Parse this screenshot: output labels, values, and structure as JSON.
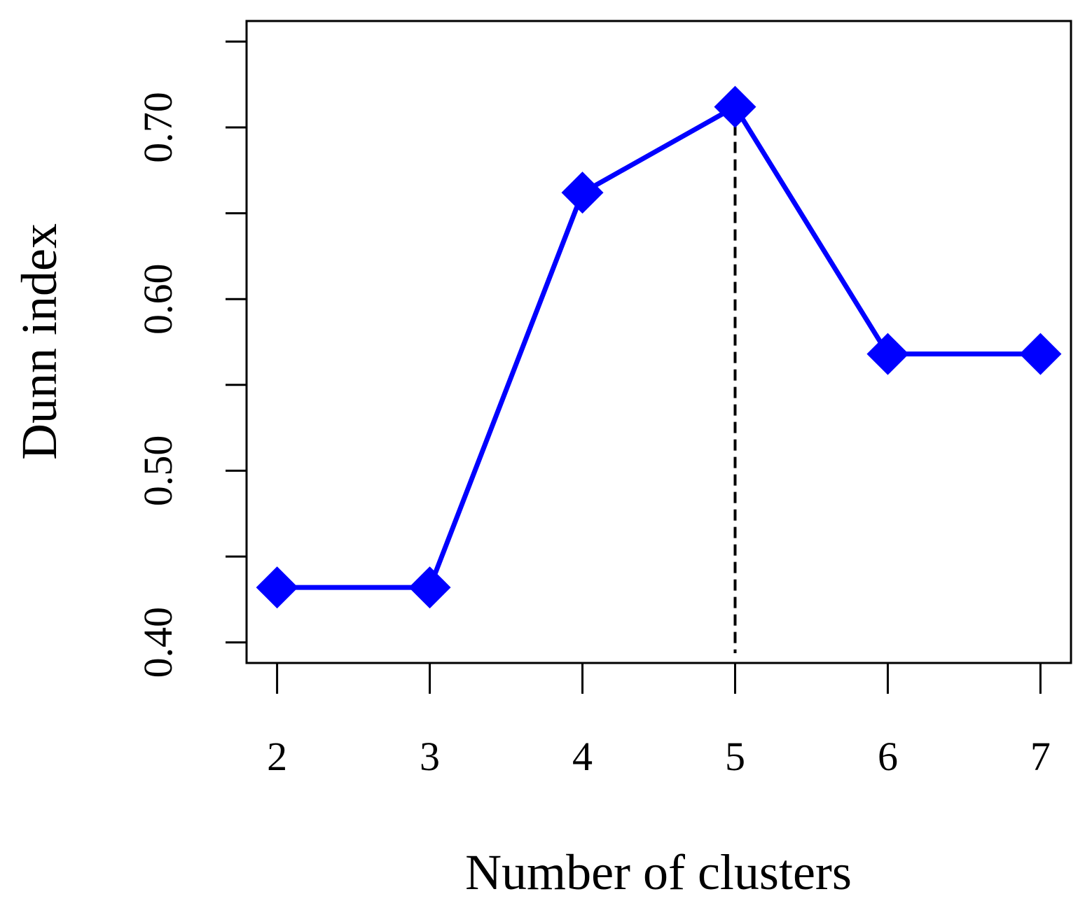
{
  "chart_data": {
    "type": "line",
    "title": "",
    "xlabel": "Number of clusters",
    "ylabel": "Dunn index",
    "x": [
      2,
      3,
      4,
      5,
      6,
      7
    ],
    "series": [
      {
        "values": [
          0.432,
          0.432,
          0.662,
          0.712,
          0.568,
          0.568
        ],
        "color": "#0000ff",
        "marker": "diamond"
      }
    ],
    "xticks": [
      "2",
      "3",
      "4",
      "5",
      "6",
      "7"
    ],
    "yticks_labeled": [
      "0.40",
      "0.50",
      "0.60",
      "0.70"
    ],
    "ytick_values": [
      0.4,
      0.45,
      0.5,
      0.55,
      0.6,
      0.65,
      0.7,
      0.75
    ],
    "xlim": [
      1.8,
      7.2
    ],
    "ylim": [
      0.388,
      0.762
    ],
    "reference_line": {
      "x": 5,
      "style": "dashed",
      "color": "#000000"
    },
    "grid": false,
    "legend": "none"
  }
}
